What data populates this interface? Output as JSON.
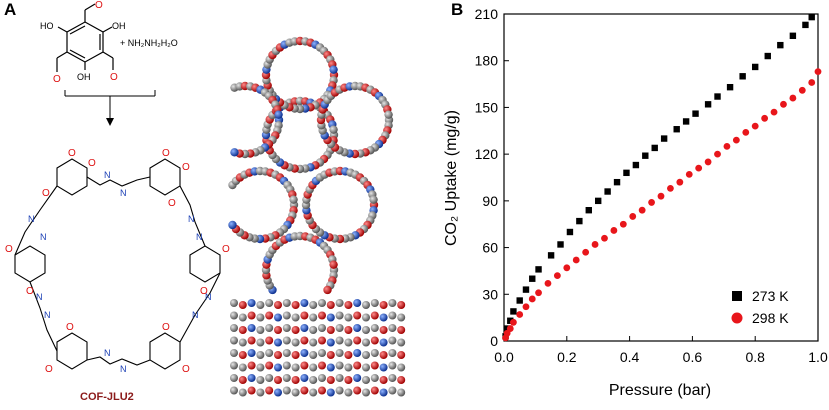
{
  "panels": {
    "a_label": "A",
    "b_label": "B"
  },
  "scheme": {
    "oh_label": "OH",
    "ho_label": "HO",
    "hydrazine": "+ NH₂NH₂H₂O",
    "cof_name": "COF-JLU2",
    "o_atom": "O",
    "n_atom": "N",
    "h_atom": "H"
  },
  "colors": {
    "series_273": "#000000",
    "series_298": "#e8161b",
    "cof_name": "#8b1a1a",
    "oxygen": "#d11111",
    "nitrogen": "#1a3fb5",
    "carbon": "#8a8a8a"
  },
  "chart_data": {
    "type": "scatter",
    "title": "",
    "xlabel": "Pressure (bar)",
    "ylabel": "CO₂ Uptake (mg/g)",
    "xlim": [
      0,
      1.0
    ],
    "ylim": [
      0,
      210
    ],
    "xticks": [
      "0.0",
      "0.2",
      "0.4",
      "0.6",
      "0.8",
      "1.0"
    ],
    "yticks": [
      "0",
      "30",
      "60",
      "90",
      "120",
      "150",
      "180",
      "210"
    ],
    "legend_position": "bottom-right",
    "series": [
      {
        "name": "273 K",
        "marker": "square",
        "x": [
          0.005,
          0.01,
          0.02,
          0.03,
          0.05,
          0.07,
          0.09,
          0.11,
          0.15,
          0.18,
          0.21,
          0.24,
          0.27,
          0.3,
          0.33,
          0.36,
          0.39,
          0.42,
          0.45,
          0.48,
          0.51,
          0.55,
          0.58,
          0.61,
          0.65,
          0.68,
          0.72,
          0.76,
          0.8,
          0.84,
          0.88,
          0.92,
          0.96,
          0.98
        ],
        "y": [
          3,
          8,
          13,
          19,
          26,
          33,
          40,
          46,
          55,
          62,
          70,
          77,
          84,
          90,
          96,
          102,
          108,
          113,
          119,
          124,
          130,
          136,
          141,
          146,
          152,
          157,
          163,
          170,
          176,
          183,
          190,
          196,
          203,
          208
        ]
      },
      {
        "name": "298 K",
        "marker": "circle",
        "x": [
          0.005,
          0.01,
          0.02,
          0.03,
          0.05,
          0.07,
          0.09,
          0.11,
          0.14,
          0.17,
          0.2,
          0.23,
          0.26,
          0.29,
          0.32,
          0.35,
          0.38,
          0.41,
          0.44,
          0.47,
          0.5,
          0.53,
          0.56,
          0.59,
          0.62,
          0.65,
          0.68,
          0.71,
          0.74,
          0.77,
          0.8,
          0.83,
          0.86,
          0.89,
          0.92,
          0.95,
          0.98,
          1.0
        ],
        "y": [
          2,
          5,
          8,
          12,
          17,
          22,
          27,
          31,
          37,
          42,
          47,
          52,
          57,
          62,
          66,
          71,
          75,
          80,
          84,
          89,
          93,
          98,
          102,
          107,
          111,
          115,
          120,
          125,
          129,
          134,
          138,
          143,
          147,
          152,
          156,
          161,
          166,
          173
        ]
      }
    ]
  }
}
